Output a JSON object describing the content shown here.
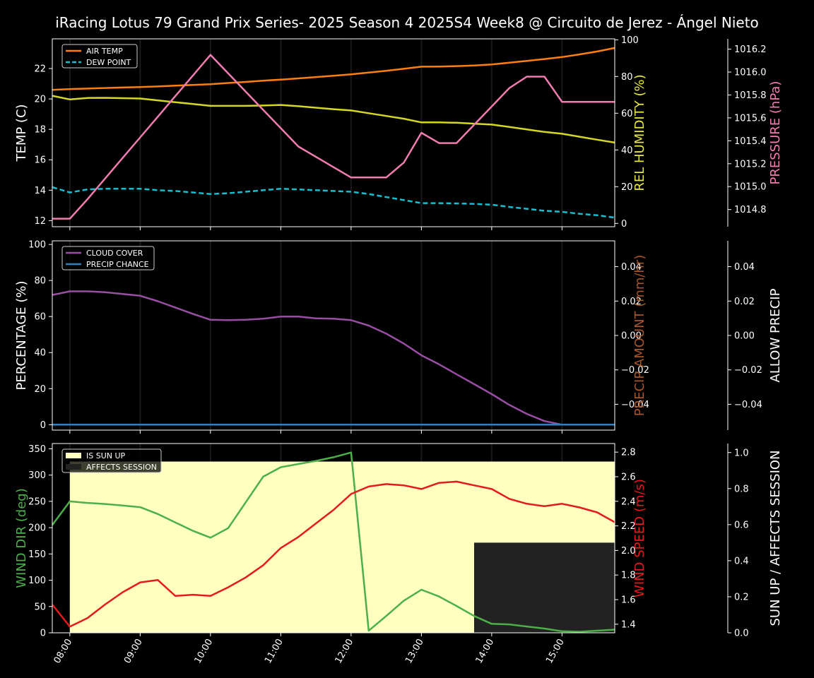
{
  "title": "iRacing Lotus 79 Grand Prix Series- 2025 Season 4 2025S4 Week8 @ Circuito de Jerez - Ángel Nieto",
  "x_ticks": [
    "08:00",
    "09:00",
    "10:00",
    "11:00",
    "12:00",
    "13:00",
    "14:00",
    "15:00"
  ],
  "chart_data": [
    {
      "type": "line",
      "panel": "temperature",
      "x": [
        7.75,
        8.0,
        8.25,
        8.5,
        8.75,
        9.0,
        9.25,
        9.5,
        9.75,
        10.0,
        10.25,
        10.5,
        10.75,
        11.0,
        11.25,
        11.5,
        11.75,
        12.0,
        12.25,
        12.5,
        12.75,
        13.0,
        13.25,
        13.5,
        13.75,
        14.0,
        14.25,
        14.5,
        14.75,
        15.0,
        15.25,
        15.5,
        15.75
      ],
      "axes": [
        {
          "side": "left",
          "label": "TEMP (C)",
          "color": "#ffffff",
          "ticks": [
            12,
            14,
            16,
            18,
            20,
            22
          ],
          "ylim": [
            11.6,
            23.95
          ]
        },
        {
          "side": "right",
          "label": "REL HUMIDITY (%)",
          "color": "#e8e83a",
          "ticks": [
            0,
            20,
            40,
            60,
            80,
            100
          ],
          "ylim": [
            -1.8,
            100.5
          ]
        },
        {
          "side": "right-outer",
          "label": "PRESSURE (hPa)",
          "color": "#f17cb0",
          "ticks": [
            1014.8,
            1015.0,
            1015.2,
            1015.4,
            1015.6,
            1015.8,
            1016.0,
            1016.2
          ],
          "tick_labels": [
            "1014.8",
            "1015.0",
            "1015.2",
            "1015.4",
            "1015.6",
            "1015.8",
            "1016.0",
            "1016.2"
          ],
          "ylim": [
            1014.65,
            1016.29
          ]
        }
      ],
      "legend": {
        "position": "top-left",
        "entries": [
          "AIR TEMP",
          "DEW POINT"
        ]
      },
      "series": [
        {
          "name": "AIR TEMP",
          "axis": 0,
          "color": "#ff7f0e",
          "dash": "solid",
          "values": [
            20.6,
            20.65,
            20.68,
            20.72,
            20.75,
            20.78,
            20.82,
            20.87,
            20.92,
            20.97,
            21.05,
            21.12,
            21.2,
            21.27,
            21.35,
            21.44,
            21.52,
            21.62,
            21.73,
            21.85,
            21.98,
            22.12,
            22.13,
            22.16,
            22.2,
            22.27,
            22.38,
            22.5,
            22.62,
            22.75,
            22.93,
            23.12,
            23.35
          ]
        },
        {
          "name": "DEW POINT",
          "axis": 0,
          "color": "#17becf",
          "dash": "dashed",
          "values": [
            14.2,
            13.85,
            14.05,
            14.1,
            14.1,
            14.1,
            14.0,
            13.95,
            13.85,
            13.75,
            13.8,
            13.9,
            14.0,
            14.1,
            14.05,
            14.0,
            13.95,
            13.9,
            13.75,
            13.55,
            13.35,
            13.15,
            13.15,
            13.13,
            13.1,
            13.05,
            12.9,
            12.78,
            12.65,
            12.58,
            12.45,
            12.35,
            12.2
          ]
        },
        {
          "axis": 1,
          "color": "#d6d624",
          "dash": "solid",
          "values": [
            69.5,
            67.5,
            68.3,
            68.4,
            68.2,
            68.0,
            67.0,
            66.0,
            65.0,
            64.0,
            64.0,
            64.0,
            64.2,
            64.5,
            63.8,
            63.0,
            62.2,
            61.5,
            60.0,
            58.5,
            57.0,
            55.0,
            55.0,
            54.8,
            54.3,
            53.8,
            52.5,
            51.2,
            49.8,
            48.8,
            47.2,
            45.6,
            44.0
          ]
        },
        {
          "axis": 2,
          "color": "#f17cb0",
          "dash": "solid",
          "values": [
            1014.72,
            1014.72,
            1014.89,
            1015.07,
            1015.25,
            1015.43,
            1015.61,
            1015.79,
            1015.97,
            1016.15,
            1015.99,
            1015.83,
            1015.67,
            1015.51,
            1015.35,
            1015.26,
            1015.17,
            1015.08,
            1015.08,
            1015.08,
            1015.21,
            1015.47,
            1015.38,
            1015.38,
            1015.54,
            1015.7,
            1015.86,
            1015.96,
            1015.96,
            1015.74,
            1015.74,
            1015.74,
            1015.74
          ]
        }
      ]
    },
    {
      "type": "line",
      "panel": "clouds",
      "x": [
        7.75,
        8.0,
        8.25,
        8.5,
        8.75,
        9.0,
        9.25,
        9.5,
        9.75,
        10.0,
        10.25,
        10.5,
        10.75,
        11.0,
        11.25,
        11.5,
        11.75,
        12.0,
        12.25,
        12.5,
        12.75,
        13.0,
        13.25,
        13.5,
        13.75,
        14.0,
        14.25,
        14.5,
        14.75,
        15.0,
        15.25,
        15.5,
        15.75
      ],
      "axes": [
        {
          "side": "left",
          "label": "PERCENTAGE (%)",
          "color": "#ffffff",
          "ticks": [
            0,
            20,
            40,
            60,
            80,
            100
          ],
          "ylim": [
            -3,
            102
          ]
        },
        {
          "side": "right",
          "label": "PRECIP AMOUNT (mm/hr)",
          "color": "#a65628",
          "ticks": [
            -0.04,
            -0.02,
            0.0,
            0.02,
            0.04
          ],
          "tick_labels": [
            "−0.04",
            "−0.02",
            "0.00",
            "0.02",
            "0.04"
          ],
          "ylim": [
            -0.055,
            0.055
          ]
        },
        {
          "side": "right-outer",
          "label": "ALLOW PRECIP",
          "color": "#ffffff",
          "ticks": [
            -0.04,
            -0.02,
            0.0,
            0.02,
            0.04
          ],
          "tick_labels": [
            "−0.04",
            "−0.02",
            "0.00",
            "0.02",
            "0.04"
          ],
          "ylim": [
            -0.055,
            0.055
          ]
        }
      ],
      "legend": {
        "position": "top-left",
        "entries": [
          "CLOUD COVER",
          "PRECIP CHANCE"
        ]
      },
      "series": [
        {
          "name": "CLOUD COVER",
          "axis": 0,
          "color": "#984ea3",
          "dash": "solid",
          "values": [
            72,
            74,
            74,
            73.5,
            72.5,
            71.5,
            68.5,
            65,
            61.5,
            58.2,
            58,
            58.2,
            58.8,
            60,
            60,
            59,
            58.8,
            58,
            55,
            50.5,
            45,
            38.5,
            33.5,
            28,
            22.5,
            17,
            11,
            6,
            2,
            0,
            0,
            0,
            0
          ]
        },
        {
          "name": "PRECIP CHANCE",
          "axis": 0,
          "color": "#377eb8",
          "dash": "solid",
          "values": [
            0,
            0,
            0,
            0,
            0,
            0,
            0,
            0,
            0,
            0,
            0,
            0,
            0,
            0,
            0,
            0,
            0,
            0,
            0,
            0,
            0,
            0,
            0,
            0,
            0,
            0,
            0,
            0,
            0,
            0,
            0,
            0,
            0
          ]
        }
      ]
    },
    {
      "type": "line",
      "panel": "wind",
      "x": [
        7.75,
        8.0,
        8.25,
        8.5,
        8.75,
        9.0,
        9.25,
        9.5,
        9.75,
        10.0,
        10.25,
        10.5,
        10.75,
        11.0,
        11.25,
        11.5,
        11.75,
        12.0,
        12.25,
        12.5,
        12.75,
        13.0,
        13.25,
        13.5,
        13.75,
        14.0,
        14.25,
        14.5,
        14.75,
        15.0,
        15.25,
        15.5,
        15.75
      ],
      "axes": [
        {
          "side": "left",
          "label": "WIND DIR (deg)",
          "color": "#4daf4a",
          "ticks": [
            0,
            50,
            100,
            150,
            200,
            250,
            300,
            350
          ],
          "ylim": [
            0,
            360
          ]
        },
        {
          "side": "right",
          "label": "WIND SPEED (m/s)",
          "color": "#e41a1c",
          "ticks": [
            1.4,
            1.6,
            1.8,
            2.0,
            2.2,
            2.4,
            2.6,
            2.8
          ],
          "tick_labels": [
            "1.4",
            "1.6",
            "1.8",
            "2.0",
            "2.2",
            "2.4",
            "2.6",
            "2.8"
          ],
          "ylim": [
            1.33,
            2.87
          ]
        },
        {
          "side": "right-outer",
          "label": "SUN UP / AFFECTS SESSION",
          "color": "#ffffff",
          "ticks": [
            0,
            0.2,
            0.4,
            0.6,
            0.8,
            1.0
          ],
          "tick_labels": [
            "0.0",
            "0.2",
            "0.4",
            "0.6",
            "0.8",
            "1.0"
          ],
          "ylim": [
            0,
            1.05
          ]
        }
      ],
      "legend": {
        "position": "top-left",
        "entries": [
          "IS SUN UP",
          "AFFECTS SESSION"
        ]
      },
      "bands": [
        {
          "name": "IS SUN UP",
          "color": "#ffffc0",
          "x_start": 8.0,
          "x_end": 15.75,
          "y_top": 0.95
        },
        {
          "name": "AFFECTS SESSION",
          "color": "#222222",
          "x_start": 13.75,
          "x_end": 15.75,
          "y_top": 0.5
        }
      ],
      "series": [
        {
          "axis": 0,
          "color": "#4daf4a",
          "dash": "solid",
          "values": [
            205,
            250,
            247,
            245,
            242,
            239,
            226,
            210,
            194,
            181,
            199,
            248,
            297,
            315,
            321,
            327,
            334,
            343,
            4,
            32,
            61,
            82,
            69,
            51,
            32,
            17,
            16,
            12,
            8,
            3,
            2,
            4,
            6
          ]
        },
        {
          "axis": 1,
          "color": "#e41a1c",
          "dash": "solid",
          "values": [
            1.56,
            1.38,
            1.45,
            1.56,
            1.66,
            1.74,
            1.76,
            1.63,
            1.64,
            1.63,
            1.7,
            1.78,
            1.88,
            2.02,
            2.11,
            2.22,
            2.33,
            2.46,
            2.52,
            2.54,
            2.53,
            2.5,
            2.55,
            2.56,
            2.53,
            2.5,
            2.42,
            2.38,
            2.36,
            2.38,
            2.35,
            2.31,
            2.23
          ]
        }
      ]
    }
  ]
}
